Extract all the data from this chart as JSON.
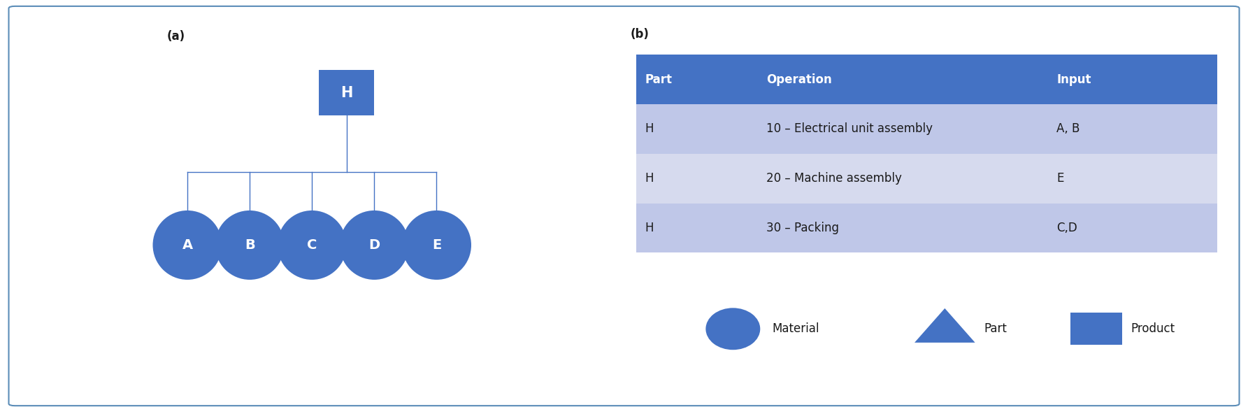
{
  "panel_a_label": "(a)",
  "panel_b_label": "(b)",
  "circle_color": "#4472C4",
  "square_color": "#4472C4",
  "circle_labels": [
    "A",
    "B",
    "C",
    "D",
    "E"
  ],
  "h_label": "H",
  "table_header_bg": "#4472C4",
  "table_header_text": "#FFFFFF",
  "table_row_bg_1": "#BFC7E8",
  "table_row_bg_2": "#D6DAEE",
  "table_row_bg_3": "#BFC7E8",
  "table_headers": [
    "Part",
    "Operation",
    "Input"
  ],
  "table_rows": [
    [
      "H",
      "10 – Electrical unit assembly",
      "A, B"
    ],
    [
      "H",
      "20 – Machine assembly",
      "E"
    ],
    [
      "H",
      "30 – Packing",
      "C,D"
    ]
  ],
  "legend_material_label": "Material",
  "legend_part_label": "Part",
  "legend_product_label": "Product",
  "outer_border_color": "#5B8DB8",
  "line_color": "#4472C4",
  "text_color_dark": "#1a1a1a",
  "font_size_panel_label": 12,
  "font_size_node": 13,
  "font_size_table_header": 12,
  "font_size_table_body": 12,
  "font_size_legend": 12
}
